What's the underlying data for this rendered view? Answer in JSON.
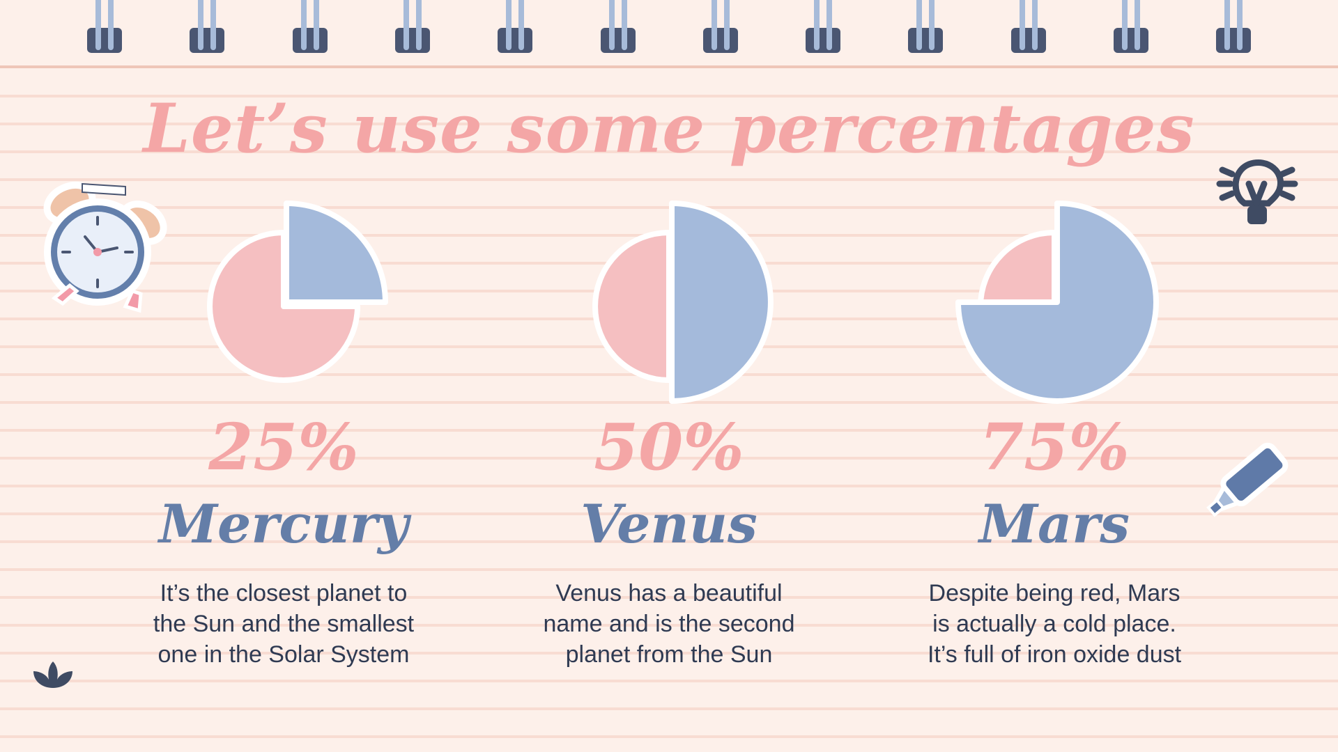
{
  "title": "Let’s use some percentages",
  "colors": {
    "background": "#fdf0ea",
    "pink": "#f5bfc1",
    "blue": "#a4badb",
    "title": "#f4a6a6",
    "name": "#647ea8",
    "text": "#2f3a52"
  },
  "icons": [
    "spiral-binding-icon",
    "alarm-clock-icon",
    "lightbulb-icon",
    "highlighter-icon",
    "lotus-icon"
  ],
  "chart_data": [
    {
      "type": "pie",
      "values": [
        25,
        75
      ],
      "label": "25%",
      "name": "Mercury",
      "description": "It’s the closest planet to\nthe Sun and the smallest\none in the Solar System"
    },
    {
      "type": "pie",
      "values": [
        50,
        50
      ],
      "label": "50%",
      "name": "Venus",
      "description": "Venus has a beautiful\nname and is the second\nplanet from the Sun"
    },
    {
      "type": "pie",
      "values": [
        75,
        25
      ],
      "label": "75%",
      "name": "Mars",
      "description": "Despite being red, Mars\nis actually a cold place.\nIt’s full of iron oxide dust"
    }
  ]
}
